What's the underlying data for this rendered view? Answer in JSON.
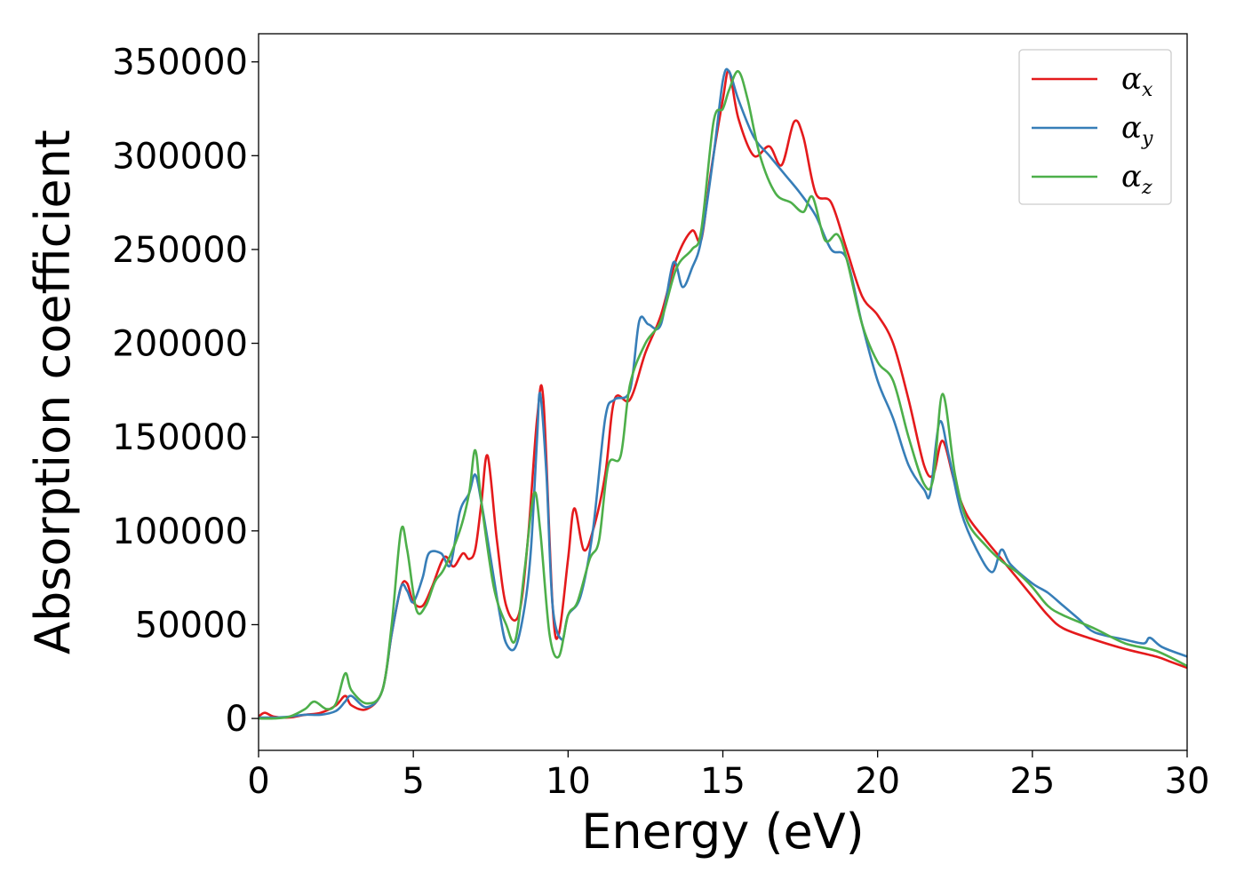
{
  "chart_data": {
    "type": "line",
    "xlabel": "Energy (eV)",
    "ylabel": "Absorption coefficient",
    "xlim": [
      0,
      30
    ],
    "ylim": [
      -17000,
      365000
    ],
    "xticks": [
      0,
      5,
      10,
      15,
      20,
      25,
      30
    ],
    "xtick_labels": [
      "0",
      "5",
      "10",
      "15",
      "20",
      "25",
      "30"
    ],
    "yticks": [
      0,
      50000,
      100000,
      150000,
      200000,
      250000,
      300000,
      350000
    ],
    "ytick_labels": [
      "0",
      "50000",
      "100000",
      "150000",
      "200000",
      "250000",
      "300000",
      "350000"
    ],
    "grid": false,
    "legend_position": "top-right",
    "series": [
      {
        "name": "α",
        "sub": "x",
        "color": "#e41a1c",
        "points": [
          [
            0,
            1000
          ],
          [
            0.2,
            3000
          ],
          [
            0.5,
            1000
          ],
          [
            1,
            500
          ],
          [
            1.5,
            2000
          ],
          [
            2,
            3000
          ],
          [
            2.5,
            7000
          ],
          [
            2.8,
            12000
          ],
          [
            3,
            7000
          ],
          [
            3.5,
            5000
          ],
          [
            4,
            15000
          ],
          [
            4.3,
            45000
          ],
          [
            4.6,
            70000
          ],
          [
            4.8,
            72000
          ],
          [
            5,
            62000
          ],
          [
            5.3,
            60000
          ],
          [
            5.6,
            70000
          ],
          [
            6,
            86000
          ],
          [
            6.3,
            81000
          ],
          [
            6.6,
            88000
          ],
          [
            6.8,
            85000
          ],
          [
            7,
            90000
          ],
          [
            7.2,
            115000
          ],
          [
            7.4,
            140000
          ],
          [
            7.7,
            95000
          ],
          [
            8,
            60000
          ],
          [
            8.4,
            55000
          ],
          [
            8.7,
            95000
          ],
          [
            9,
            160000
          ],
          [
            9.2,
            170000
          ],
          [
            9.5,
            60000
          ],
          [
            9.7,
            45000
          ],
          [
            10,
            85000
          ],
          [
            10.2,
            112000
          ],
          [
            10.5,
            90000
          ],
          [
            10.8,
            100000
          ],
          [
            11.2,
            130000
          ],
          [
            11.5,
            170000
          ],
          [
            12,
            170000
          ],
          [
            12.5,
            195000
          ],
          [
            13,
            215000
          ],
          [
            13.5,
            245000
          ],
          [
            14,
            260000
          ],
          [
            14.3,
            255000
          ],
          [
            14.6,
            290000
          ],
          [
            15,
            330000
          ],
          [
            15.2,
            345000
          ],
          [
            15.5,
            320000
          ],
          [
            16,
            300000
          ],
          [
            16.5,
            305000
          ],
          [
            16.9,
            295000
          ],
          [
            17.3,
            318000
          ],
          [
            17.6,
            310000
          ],
          [
            18,
            280000
          ],
          [
            18.5,
            275000
          ],
          [
            19,
            250000
          ],
          [
            19.5,
            225000
          ],
          [
            20,
            215000
          ],
          [
            20.5,
            200000
          ],
          [
            21,
            170000
          ],
          [
            21.5,
            135000
          ],
          [
            21.8,
            130000
          ],
          [
            22.1,
            148000
          ],
          [
            22.5,
            125000
          ],
          [
            22.9,
            108000
          ],
          [
            23.5,
            95000
          ],
          [
            24,
            85000
          ],
          [
            24.5,
            75000
          ],
          [
            25,
            65000
          ],
          [
            25.5,
            55000
          ],
          [
            26,
            48000
          ],
          [
            27,
            42000
          ],
          [
            28,
            37000
          ],
          [
            29,
            33000
          ],
          [
            29.5,
            30000
          ],
          [
            30,
            27000
          ]
        ]
      },
      {
        "name": "α",
        "sub": "y",
        "color": "#377eb8",
        "points": [
          [
            0,
            500
          ],
          [
            0.5,
            500
          ],
          [
            1,
            1000
          ],
          [
            1.5,
            2000
          ],
          [
            2,
            2000
          ],
          [
            2.5,
            4000
          ],
          [
            2.8,
            9000
          ],
          [
            3,
            12000
          ],
          [
            3.5,
            6000
          ],
          [
            4,
            15000
          ],
          [
            4.3,
            45000
          ],
          [
            4.6,
            70000
          ],
          [
            4.8,
            68000
          ],
          [
            5,
            62000
          ],
          [
            5.3,
            75000
          ],
          [
            5.5,
            88000
          ],
          [
            5.9,
            88000
          ],
          [
            6.2,
            82000
          ],
          [
            6.5,
            110000
          ],
          [
            6.8,
            120000
          ],
          [
            7,
            130000
          ],
          [
            7.2,
            115000
          ],
          [
            7.5,
            85000
          ],
          [
            7.8,
            55000
          ],
          [
            8,
            40000
          ],
          [
            8.3,
            38000
          ],
          [
            8.6,
            60000
          ],
          [
            8.8,
            90000
          ],
          [
            9,
            150000
          ],
          [
            9.1,
            173000
          ],
          [
            9.3,
            130000
          ],
          [
            9.5,
            60000
          ],
          [
            9.8,
            42000
          ],
          [
            10,
            55000
          ],
          [
            10.4,
            65000
          ],
          [
            10.8,
            100000
          ],
          [
            11.2,
            160000
          ],
          [
            11.5,
            170000
          ],
          [
            12,
            175000
          ],
          [
            12.3,
            212000
          ],
          [
            12.6,
            210000
          ],
          [
            13,
            210000
          ],
          [
            13.4,
            243000
          ],
          [
            13.7,
            230000
          ],
          [
            14,
            240000
          ],
          [
            14.3,
            255000
          ],
          [
            14.7,
            300000
          ],
          [
            15,
            340000
          ],
          [
            15.2,
            345000
          ],
          [
            15.5,
            330000
          ],
          [
            16,
            310000
          ],
          [
            16.5,
            300000
          ],
          [
            17,
            290000
          ],
          [
            17.5,
            280000
          ],
          [
            18,
            268000
          ],
          [
            18.5,
            250000
          ],
          [
            19,
            245000
          ],
          [
            19.5,
            210000
          ],
          [
            20,
            180000
          ],
          [
            20.5,
            160000
          ],
          [
            21,
            135000
          ],
          [
            21.5,
            122000
          ],
          [
            21.7,
            120000
          ],
          [
            22,
            158000
          ],
          [
            22.3,
            140000
          ],
          [
            22.7,
            110000
          ],
          [
            23.2,
            90000
          ],
          [
            23.7,
            78000
          ],
          [
            24,
            90000
          ],
          [
            24.3,
            82000
          ],
          [
            25,
            72000
          ],
          [
            25.5,
            67000
          ],
          [
            26,
            60000
          ],
          [
            26.5,
            53000
          ],
          [
            27,
            46000
          ],
          [
            28,
            42000
          ],
          [
            28.6,
            40000
          ],
          [
            28.8,
            43000
          ],
          [
            29.2,
            38000
          ],
          [
            30,
            33000
          ]
        ]
      },
      {
        "name": "α",
        "sub": "z",
        "color": "#4daf4a",
        "points": [
          [
            0,
            0
          ],
          [
            0.5,
            0
          ],
          [
            1,
            1000
          ],
          [
            1.5,
            5000
          ],
          [
            1.8,
            9000
          ],
          [
            2.2,
            5000
          ],
          [
            2.5,
            8000
          ],
          [
            2.8,
            24000
          ],
          [
            3,
            15000
          ],
          [
            3.5,
            8000
          ],
          [
            4,
            15000
          ],
          [
            4.3,
            50000
          ],
          [
            4.6,
            100000
          ],
          [
            4.8,
            90000
          ],
          [
            5.1,
            58000
          ],
          [
            5.4,
            60000
          ],
          [
            5.7,
            73000
          ],
          [
            6,
            80000
          ],
          [
            6.5,
            100000
          ],
          [
            6.8,
            120000
          ],
          [
            7,
            143000
          ],
          [
            7.2,
            115000
          ],
          [
            7.6,
            70000
          ],
          [
            8,
            50000
          ],
          [
            8.3,
            42000
          ],
          [
            8.6,
            80000
          ],
          [
            8.9,
            120000
          ],
          [
            9.1,
            100000
          ],
          [
            9.4,
            45000
          ],
          [
            9.7,
            33000
          ],
          [
            10,
            55000
          ],
          [
            10.3,
            62000
          ],
          [
            10.7,
            85000
          ],
          [
            11,
            95000
          ],
          [
            11.3,
            135000
          ],
          [
            11.7,
            140000
          ],
          [
            12,
            178000
          ],
          [
            12.5,
            200000
          ],
          [
            13,
            212000
          ],
          [
            13.5,
            240000
          ],
          [
            14,
            250000
          ],
          [
            14.3,
            260000
          ],
          [
            14.7,
            318000
          ],
          [
            15,
            325000
          ],
          [
            15.2,
            335000
          ],
          [
            15.5,
            345000
          ],
          [
            15.8,
            330000
          ],
          [
            16.2,
            300000
          ],
          [
            16.7,
            280000
          ],
          [
            17.2,
            275000
          ],
          [
            17.6,
            270000
          ],
          [
            17.9,
            278000
          ],
          [
            18.3,
            255000
          ],
          [
            18.7,
            258000
          ],
          [
            19,
            245000
          ],
          [
            19.5,
            210000
          ],
          [
            20,
            190000
          ],
          [
            20.5,
            180000
          ],
          [
            21,
            150000
          ],
          [
            21.5,
            125000
          ],
          [
            21.8,
            128000
          ],
          [
            22.1,
            173000
          ],
          [
            22.5,
            130000
          ],
          [
            22.9,
            105000
          ],
          [
            23.5,
            92000
          ],
          [
            24,
            84000
          ],
          [
            24.5,
            78000
          ],
          [
            25,
            70000
          ],
          [
            25.5,
            60000
          ],
          [
            26,
            55000
          ],
          [
            27,
            48000
          ],
          [
            28,
            40000
          ],
          [
            29,
            36000
          ],
          [
            30,
            28000
          ]
        ]
      }
    ]
  }
}
